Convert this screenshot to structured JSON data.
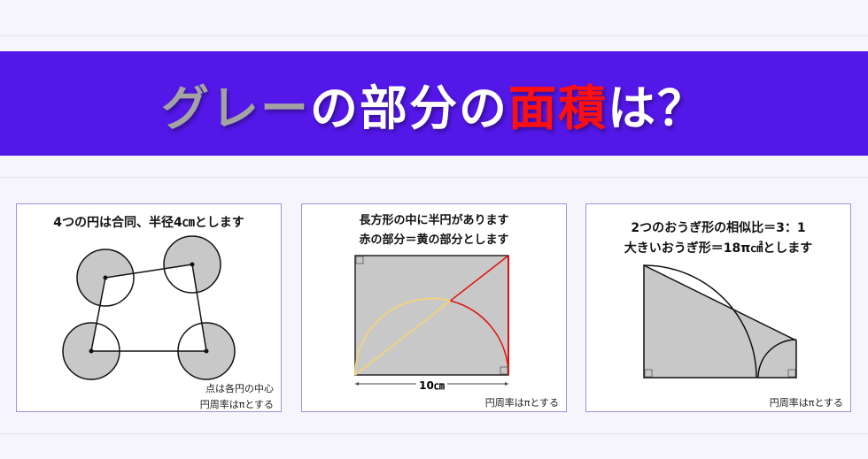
{
  "banner": {
    "title_gray": "グレー",
    "title_mid": "の部分の",
    "title_red": "面積",
    "title_end": "は？",
    "colors": {
      "background": "#5317e8",
      "gray": "#a3a3a3",
      "red": "#ff1010"
    }
  },
  "problems": [
    {
      "title": "4つの円は合同、半径4㎝とします",
      "notes": [
        "点は各円の中心",
        "円周率はπとする"
      ]
    },
    {
      "title_lines": [
        "長方形の中に半円があります",
        "赤の部分＝黄の部分とします"
      ],
      "dimension_label": "10㎝",
      "notes": [
        "円周率はπとする"
      ]
    },
    {
      "title_lines": [
        "2つのおうぎ形の相似比＝3：1",
        "大きいおうぎ形＝18π㎠とします"
      ],
      "notes": [
        "円周率はπとする"
      ]
    }
  ],
  "colors": {
    "shade": "#c8c8c8",
    "yellow": "#f3d27a",
    "red": "#e01010"
  }
}
